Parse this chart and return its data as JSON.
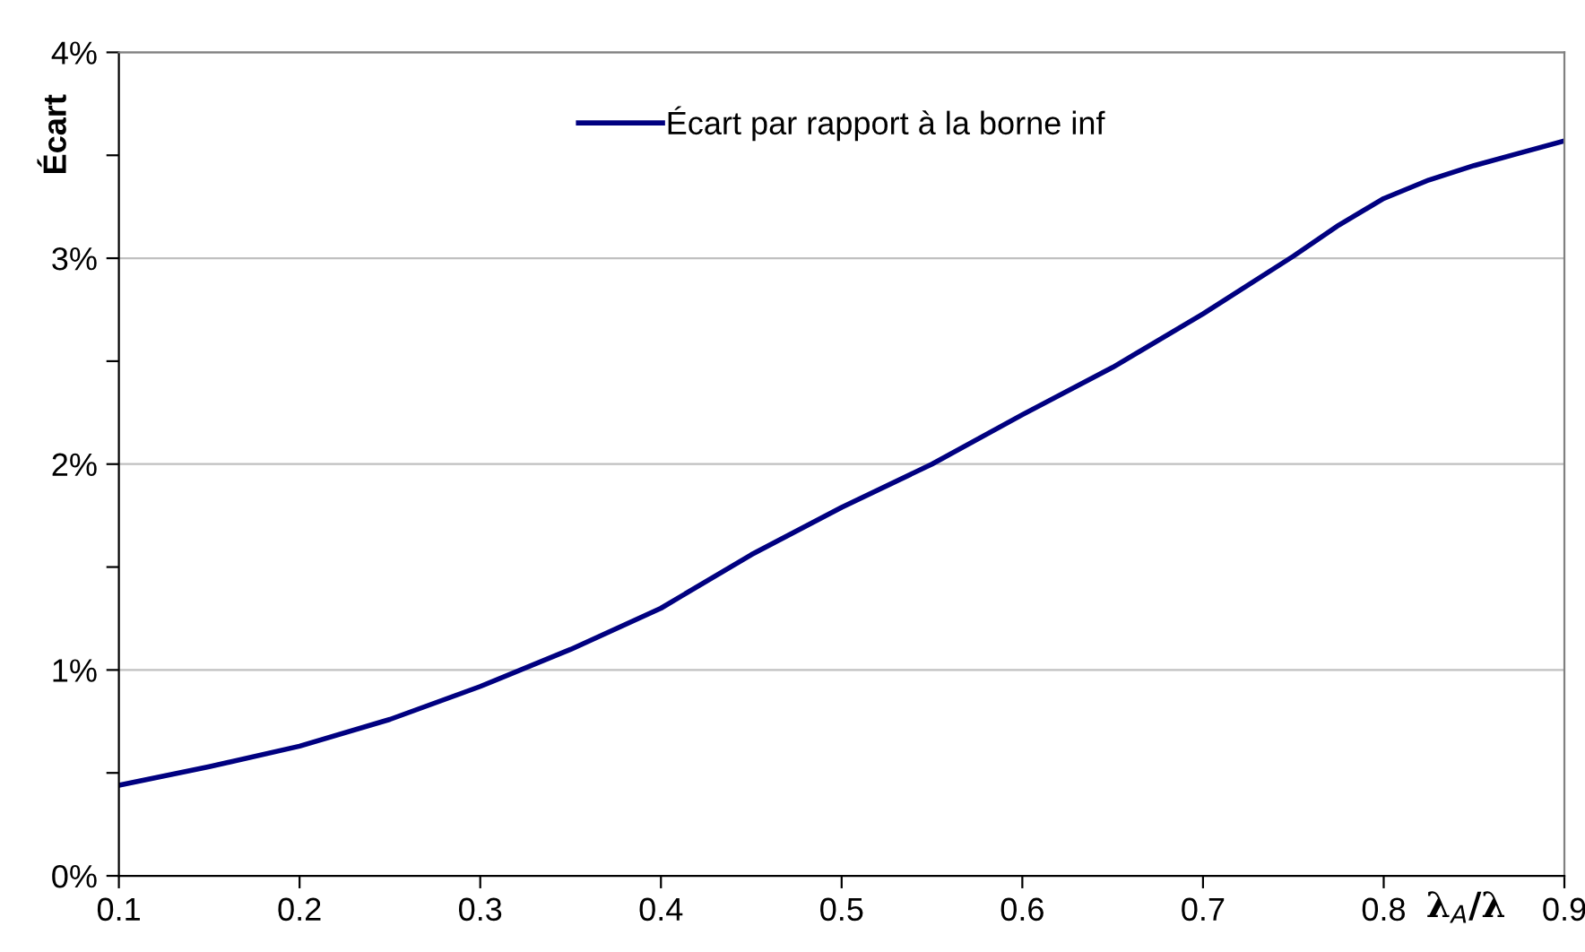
{
  "chart_data": {
    "type": "line",
    "xlabel": "λ$_{A}$/λ",
    "ylabel": "Écart",
    "x": [
      0.1,
      0.15,
      0.2,
      0.25,
      0.3,
      0.35,
      0.4,
      0.45,
      0.5,
      0.55,
      0.6,
      0.65,
      0.7,
      0.75,
      0.775,
      0.8,
      0.825,
      0.85,
      0.875,
      0.9
    ],
    "series": [
      {
        "name": "Écart par rapport à la borne inf",
        "color": "#000080",
        "values": [
          0.44,
          0.53,
          0.63,
          0.76,
          0.92,
          1.1,
          1.3,
          1.56,
          1.79,
          2.0,
          2.24,
          2.47,
          2.73,
          3.01,
          3.16,
          3.29,
          3.38,
          3.45,
          3.51,
          3.57
        ]
      }
    ],
    "xlim": [
      0.1,
      0.9
    ],
    "xticks": [
      0.1,
      0.2,
      0.3,
      0.4,
      0.5,
      0.6,
      0.7,
      0.8,
      0.9
    ],
    "ylim": [
      0,
      4
    ],
    "yticks": [
      {
        "value": 0,
        "label": "0%"
      },
      {
        "value": 0.5,
        "label": null
      },
      {
        "value": 1,
        "label": "1%"
      },
      {
        "value": 1.5,
        "label": null
      },
      {
        "value": 2,
        "label": "2%"
      },
      {
        "value": 2.5,
        "label": null
      },
      {
        "value": 3,
        "label": "3%"
      },
      {
        "value": 3.5,
        "label": null
      },
      {
        "value": 4,
        "label": "4%"
      }
    ],
    "grid": "y",
    "legend": "top",
    "marker": "none",
    "line_style": "solid"
  }
}
